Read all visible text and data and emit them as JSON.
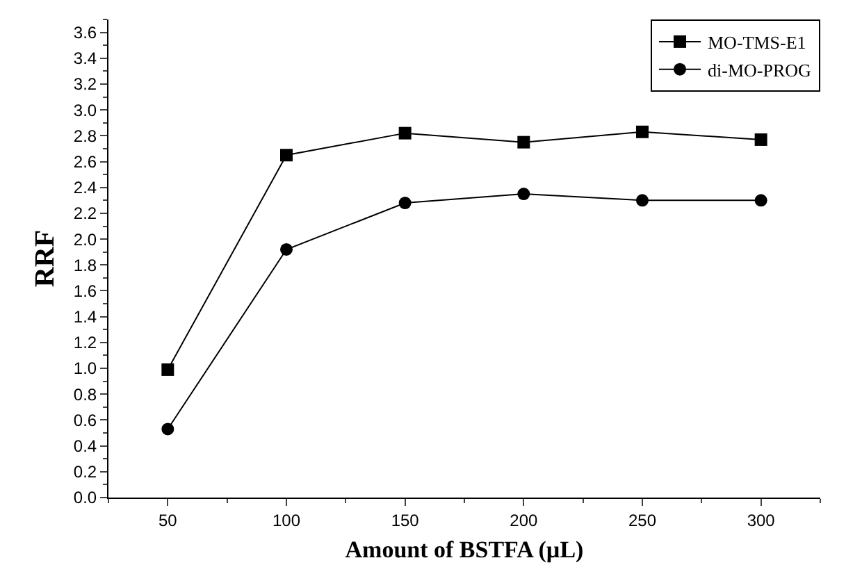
{
  "chart_data": {
    "type": "line",
    "xlabel": "Amount of BSTFA (µL)",
    "ylabel": "RRF",
    "x": [
      50,
      100,
      150,
      200,
      250,
      300
    ],
    "series": [
      {
        "name": "MO-TMS-E1",
        "color": "#000000",
        "marker": "square",
        "values": [
          0.99,
          2.65,
          2.82,
          2.75,
          2.83,
          2.77
        ]
      },
      {
        "name": "di-MO-PROG",
        "color": "#000000",
        "marker": "circle",
        "values": [
          0.53,
          1.92,
          2.28,
          2.35,
          2.3,
          2.3
        ]
      }
    ],
    "xlim": [
      25,
      325
    ],
    "xticks": [
      50,
      100,
      150,
      200,
      250,
      300
    ],
    "ylim": [
      0,
      3.7
    ],
    "yticks": [
      {
        "value": 0,
        "label": "0.0"
      },
      0.2,
      0.4,
      0.6,
      0.8,
      {
        "value": 1,
        "label": "1.0"
      },
      1.2,
      1.4,
      1.6,
      1.8,
      {
        "value": 2,
        "label": "2.0"
      },
      2.2,
      2.4,
      2.6,
      2.8,
      {
        "value": 3,
        "label": "3.0"
      },
      3.2,
      3.4,
      3.6
    ],
    "legend": "top right",
    "line_style": "solid"
  }
}
